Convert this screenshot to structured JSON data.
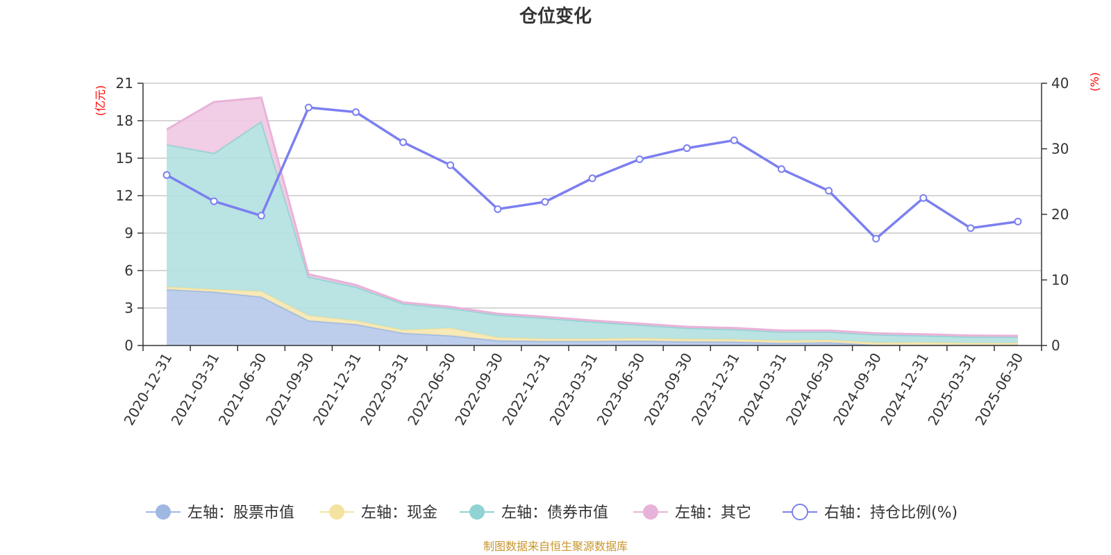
{
  "chart_data": {
    "type": "area",
    "title": "仓位变化",
    "left_axis_unit": "(亿元)",
    "right_axis_unit": "(%)",
    "ylim_left": [
      0,
      21
    ],
    "yticks_left": [
      "0",
      "3",
      "6",
      "9",
      "12",
      "15",
      "18",
      "21"
    ],
    "ylim_right": [
      0,
      40
    ],
    "yticks_right": [
      "0",
      "10",
      "20",
      "30",
      "40"
    ],
    "categories": [
      "2020-12-31",
      "2021-03-31",
      "2021-06-30",
      "2021-09-30",
      "2021-12-31",
      "2022-03-31",
      "2022-06-30",
      "2022-09-30",
      "2022-12-31",
      "2023-03-31",
      "2023-06-30",
      "2023-09-30",
      "2023-12-31",
      "2024-03-31",
      "2024-06-30",
      "2024-09-30",
      "2024-12-31",
      "2025-03-31",
      "2025-06-30"
    ],
    "stacked_series": [
      {
        "name": "左轴：股票市值",
        "color": "#9fb8e2",
        "fill": "#b6c9ea",
        "values": [
          4.5,
          4.3,
          3.9,
          2.0,
          1.7,
          1.0,
          0.8,
          0.4,
          0.35,
          0.35,
          0.38,
          0.32,
          0.3,
          0.2,
          0.25,
          0.05,
          0.05,
          0.05,
          0.05
        ]
      },
      {
        "name": "左轴：现金",
        "color": "#f4e3a0",
        "fill": "#f7e8b0",
        "values": [
          0.2,
          0.2,
          0.45,
          0.4,
          0.3,
          0.25,
          0.6,
          0.25,
          0.2,
          0.2,
          0.22,
          0.2,
          0.2,
          0.2,
          0.2,
          0.18,
          0.2,
          0.15,
          0.15
        ]
      },
      {
        "name": "左轴：债券市值",
        "color": "#8fd3d3",
        "fill": "#b3e0e0",
        "values": [
          11.4,
          10.9,
          13.6,
          3.1,
          2.7,
          2.1,
          1.6,
          1.8,
          1.65,
          1.35,
          1.05,
          0.88,
          0.8,
          0.7,
          0.65,
          0.65,
          0.55,
          0.5,
          0.48
        ]
      },
      {
        "name": "左轴：其它",
        "color": "#e8b3d9",
        "fill": "#efc9e3",
        "values": [
          1.2,
          4.1,
          1.9,
          0.2,
          0.15,
          0.1,
          0.1,
          0.1,
          0.1,
          0.1,
          0.1,
          0.1,
          0.1,
          0.1,
          0.1,
          0.1,
          0.1,
          0.1,
          0.1
        ]
      }
    ],
    "line_series": {
      "name": "右轴：持仓比例(%)",
      "color": "#7b7ff0",
      "axis": "right",
      "values": [
        26.0,
        22.0,
        19.8,
        36.3,
        35.6,
        31.0,
        27.5,
        20.8,
        21.9,
        25.5,
        28.4,
        30.1,
        31.3,
        26.9,
        23.6,
        16.3,
        22.5,
        17.9,
        18.9
      ]
    },
    "legend_position": "bottom",
    "grid": true
  },
  "footer": {
    "source": "制图数据来自恒生聚源数据库"
  }
}
